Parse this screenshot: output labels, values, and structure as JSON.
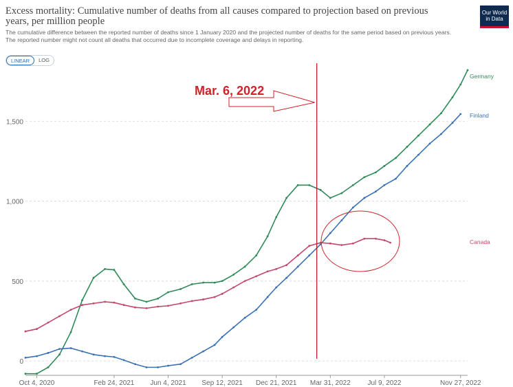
{
  "header": {
    "title": "Excess mortality: Cumulative number of deaths from all causes compared to projection based on previous years, per million people",
    "subtitle_line1": "The cumulative difference between the reported number of deaths since 1 January 2020 and the projected number of deaths for the same period based on previous years.",
    "subtitle_line2": "The reported number might not count all deaths that occurred due to incomplete coverage and delays in reporting.",
    "logo_line1": "Our World",
    "logo_line2": "in Data"
  },
  "toggle": {
    "linear_label": "LINEAR",
    "log_label": "LOG",
    "selected": "LINEAR"
  },
  "annotation": {
    "label": "Mar. 6, 2022",
    "date": "2022-03-06",
    "line_color": "#c0101a"
  },
  "chart_data": {
    "type": "line",
    "title": "Excess mortality: Cumulative number of deaths from all causes compared to projection based on previous years, per million people",
    "xlabel": "",
    "ylabel": "",
    "x_ticks": [
      "Oct 4, 2020",
      "Feb 24, 2021",
      "Jun 4, 2021",
      "Sep 12, 2021",
      "Dec 21, 2021",
      "Mar 31, 2022",
      "Jul 9, 2022",
      "Nov 27, 2022"
    ],
    "y_ticks": [
      0,
      500,
      1000,
      1500
    ],
    "ylim": [
      -90,
      1850
    ],
    "xlim": [
      "2020-09-13",
      "2022-12-10"
    ],
    "grid": "horizontal dashed",
    "legend": "labels at right end of lines",
    "series": [
      {
        "name": "Germany",
        "color": "#2f8a5a",
        "points": [
          [
            "2020-09-13",
            -80
          ],
          [
            "2020-10-04",
            -80
          ],
          [
            "2020-10-25",
            -40
          ],
          [
            "2020-11-15",
            40
          ],
          [
            "2020-12-06",
            180
          ],
          [
            "2020-12-27",
            380
          ],
          [
            "2021-01-17",
            520
          ],
          [
            "2021-02-07",
            575
          ],
          [
            "2021-02-24",
            570
          ],
          [
            "2021-03-14",
            480
          ],
          [
            "2021-04-04",
            390
          ],
          [
            "2021-04-25",
            370
          ],
          [
            "2021-05-16",
            390
          ],
          [
            "2021-06-04",
            430
          ],
          [
            "2021-06-27",
            450
          ],
          [
            "2021-07-18",
            480
          ],
          [
            "2021-08-08",
            490
          ],
          [
            "2021-08-29",
            490
          ],
          [
            "2021-09-12",
            500
          ],
          [
            "2021-10-03",
            540
          ],
          [
            "2021-10-24",
            590
          ],
          [
            "2021-11-14",
            660
          ],
          [
            "2021-12-05",
            780
          ],
          [
            "2021-12-21",
            900
          ],
          [
            "2022-01-09",
            1020
          ],
          [
            "2022-01-30",
            1100
          ],
          [
            "2022-02-20",
            1100
          ],
          [
            "2022-03-13",
            1070
          ],
          [
            "2022-03-31",
            1020
          ],
          [
            "2022-04-21",
            1050
          ],
          [
            "2022-05-12",
            1100
          ],
          [
            "2022-06-02",
            1150
          ],
          [
            "2022-06-23",
            1180
          ],
          [
            "2022-07-09",
            1220
          ],
          [
            "2022-07-30",
            1270
          ],
          [
            "2022-08-20",
            1340
          ],
          [
            "2022-09-10",
            1410
          ],
          [
            "2022-10-01",
            1480
          ],
          [
            "2022-10-22",
            1550
          ],
          [
            "2022-11-12",
            1650
          ],
          [
            "2022-11-27",
            1730
          ],
          [
            "2022-12-10",
            1820
          ]
        ]
      },
      {
        "name": "Finland",
        "color": "#3a71b5",
        "points": [
          [
            "2020-09-13",
            20
          ],
          [
            "2020-10-04",
            30
          ],
          [
            "2020-10-25",
            50
          ],
          [
            "2020-11-15",
            75
          ],
          [
            "2020-12-06",
            80
          ],
          [
            "2020-12-27",
            60
          ],
          [
            "2021-01-17",
            40
          ],
          [
            "2021-02-07",
            30
          ],
          [
            "2021-02-24",
            25
          ],
          [
            "2021-03-14",
            5
          ],
          [
            "2021-04-04",
            -20
          ],
          [
            "2021-04-25",
            -40
          ],
          [
            "2021-05-16",
            -40
          ],
          [
            "2021-06-04",
            -30
          ],
          [
            "2021-06-27",
            -20
          ],
          [
            "2021-07-18",
            20
          ],
          [
            "2021-08-08",
            60
          ],
          [
            "2021-08-29",
            100
          ],
          [
            "2021-09-12",
            150
          ],
          [
            "2021-10-03",
            210
          ],
          [
            "2021-10-24",
            270
          ],
          [
            "2021-11-14",
            320
          ],
          [
            "2021-12-05",
            400
          ],
          [
            "2021-12-21",
            460
          ],
          [
            "2022-01-09",
            520
          ],
          [
            "2022-01-30",
            590
          ],
          [
            "2022-02-20",
            660
          ],
          [
            "2022-03-13",
            730
          ],
          [
            "2022-03-31",
            800
          ],
          [
            "2022-04-21",
            880
          ],
          [
            "2022-05-12",
            960
          ],
          [
            "2022-06-02",
            1020
          ],
          [
            "2022-06-23",
            1060
          ],
          [
            "2022-07-09",
            1100
          ],
          [
            "2022-07-30",
            1140
          ],
          [
            "2022-08-20",
            1220
          ],
          [
            "2022-09-10",
            1290
          ],
          [
            "2022-10-01",
            1360
          ],
          [
            "2022-10-22",
            1420
          ],
          [
            "2022-11-12",
            1490
          ],
          [
            "2022-11-27",
            1545
          ]
        ]
      },
      {
        "name": "Canada",
        "color": "#c2476b",
        "points": [
          [
            "2020-09-13",
            185
          ],
          [
            "2020-10-04",
            200
          ],
          [
            "2020-10-25",
            240
          ],
          [
            "2020-11-15",
            280
          ],
          [
            "2020-12-06",
            320
          ],
          [
            "2020-12-27",
            350
          ],
          [
            "2021-01-17",
            360
          ],
          [
            "2021-02-07",
            370
          ],
          [
            "2021-02-24",
            365
          ],
          [
            "2021-03-14",
            350
          ],
          [
            "2021-04-04",
            335
          ],
          [
            "2021-04-25",
            330
          ],
          [
            "2021-05-16",
            340
          ],
          [
            "2021-06-04",
            345
          ],
          [
            "2021-06-27",
            360
          ],
          [
            "2021-07-18",
            375
          ],
          [
            "2021-08-08",
            385
          ],
          [
            "2021-08-29",
            400
          ],
          [
            "2021-09-12",
            420
          ],
          [
            "2021-10-03",
            460
          ],
          [
            "2021-10-24",
            500
          ],
          [
            "2021-11-14",
            530
          ],
          [
            "2021-12-05",
            560
          ],
          [
            "2021-12-21",
            575
          ],
          [
            "2022-01-09",
            600
          ],
          [
            "2022-01-30",
            660
          ],
          [
            "2022-02-20",
            720
          ],
          [
            "2022-03-13",
            740
          ],
          [
            "2022-03-31",
            735
          ],
          [
            "2022-04-21",
            725
          ],
          [
            "2022-05-12",
            735
          ],
          [
            "2022-06-02",
            765
          ],
          [
            "2022-06-23",
            765
          ],
          [
            "2022-07-09",
            755
          ],
          [
            "2022-07-20",
            740
          ]
        ]
      }
    ]
  }
}
